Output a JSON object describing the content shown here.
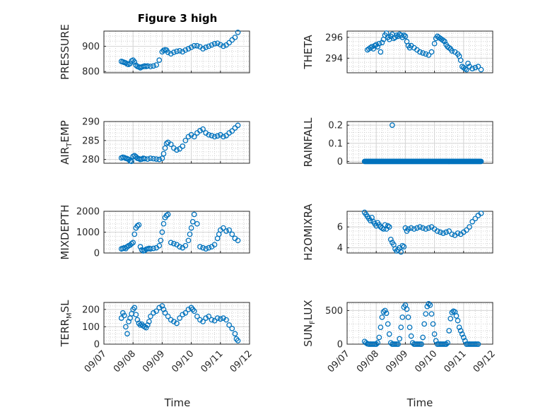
{
  "chart_data": [
    {
      "type": "scatter",
      "title": "Figure 3 high",
      "ylabel": "PRESSURE",
      "yticks": [
        800,
        900
      ],
      "ylim": [
        795,
        960
      ],
      "xlim": [
        0,
        5
      ],
      "xticks": [
        "09/07",
        "09/08",
        "09/09",
        "09/10",
        "09/11",
        "09/12"
      ],
      "grid": true,
      "x": [
        0.6,
        0.65,
        0.7,
        0.75,
        0.8,
        0.85,
        0.9,
        0.95,
        1.0,
        1.05,
        1.1,
        1.15,
        1.2,
        1.25,
        1.3,
        1.35,
        1.4,
        1.45,
        1.5,
        1.6,
        1.7,
        1.8,
        1.9,
        2.0,
        2.05,
        2.1,
        2.15,
        2.2,
        2.3,
        2.4,
        2.5,
        2.6,
        2.7,
        2.8,
        2.9,
        3.0,
        3.1,
        3.2,
        3.3,
        3.4,
        3.5,
        3.6,
        3.7,
        3.8,
        3.9,
        4.0,
        4.1,
        4.2,
        4.3,
        4.4,
        4.5,
        4.6
      ],
      "y": [
        840,
        838,
        836,
        834,
        830,
        828,
        832,
        842,
        845,
        838,
        825,
        820,
        818,
        815,
        818,
        820,
        822,
        820,
        822,
        820,
        822,
        826,
        845,
        878,
        884,
        886,
        885,
        876,
        870,
        876,
        880,
        882,
        878,
        885,
        890,
        896,
        902,
        902,
        898,
        890,
        896,
        900,
        905,
        910,
        912,
        906,
        900,
        905,
        914,
        925,
        935,
        955
      ]
    },
    {
      "type": "scatter",
      "ylabel": "THETA",
      "yticks": [
        294,
        296
      ],
      "ylim": [
        292.6,
        296.6
      ],
      "xlim": [
        0,
        5
      ],
      "xticks": [
        "09/07",
        "09/08",
        "09/09",
        "09/10",
        "09/11",
        "09/12"
      ],
      "grid": true,
      "x": [
        0.7,
        0.75,
        0.8,
        0.85,
        0.9,
        0.95,
        1.0,
        1.05,
        1.1,
        1.15,
        1.2,
        1.25,
        1.3,
        1.35,
        1.4,
        1.45,
        1.5,
        1.55,
        1.6,
        1.65,
        1.7,
        1.75,
        1.8,
        1.85,
        1.9,
        1.95,
        2.0,
        2.05,
        2.1,
        2.15,
        2.2,
        2.3,
        2.4,
        2.5,
        2.6,
        2.7,
        2.8,
        2.9,
        3.0,
        3.05,
        3.1,
        3.15,
        3.2,
        3.25,
        3.3,
        3.35,
        3.4,
        3.45,
        3.5,
        3.55,
        3.6,
        3.7,
        3.8,
        3.85,
        3.9,
        3.95,
        4.0,
        4.05,
        4.1,
        4.15,
        4.2,
        4.3,
        4.4,
        4.5,
        4.6
      ],
      "y": [
        294.8,
        294.9,
        295.0,
        295.1,
        294.9,
        295.2,
        295.3,
        295.1,
        295.4,
        294.6,
        295.5,
        295.8,
        296.2,
        296.4,
        296.0,
        295.8,
        296.1,
        296.3,
        295.9,
        296.0,
        296.2,
        296.1,
        296.3,
        296.2,
        296.0,
        296.2,
        296.1,
        295.6,
        295.2,
        295.0,
        295.2,
        295.0,
        294.8,
        294.6,
        294.5,
        294.4,
        294.3,
        294.6,
        295.4,
        295.9,
        296.1,
        296.0,
        295.9,
        295.8,
        295.7,
        295.6,
        295.3,
        295.1,
        295.0,
        294.9,
        294.7,
        294.6,
        294.4,
        294.2,
        293.8,
        293.2,
        293.1,
        293.0,
        292.9,
        293.5,
        293.2,
        293.0,
        293.1,
        293.2,
        292.9
      ]
    },
    {
      "type": "scatter",
      "ylabel": "AIR",
      "ylabel_sub": "T",
      "ylabel_rest": "EMP",
      "yticks": [
        280,
        285,
        290
      ],
      "ylim": [
        279,
        290
      ],
      "xlim": [
        0,
        5
      ],
      "xticks": [
        "09/07",
        "09/08",
        "09/09",
        "09/10",
        "09/11",
        "09/12"
      ],
      "grid": true,
      "x": [
        0.6,
        0.65,
        0.7,
        0.75,
        0.8,
        0.85,
        0.9,
        0.95,
        1.0,
        1.05,
        1.1,
        1.15,
        1.2,
        1.25,
        1.3,
        1.35,
        1.4,
        1.5,
        1.6,
        1.7,
        1.8,
        1.9,
        2.0,
        2.05,
        2.1,
        2.15,
        2.2,
        2.3,
        2.4,
        2.5,
        2.6,
        2.7,
        2.8,
        2.9,
        3.0,
        3.1,
        3.2,
        3.3,
        3.4,
        3.5,
        3.6,
        3.7,
        3.8,
        3.9,
        4.0,
        4.1,
        4.2,
        4.3,
        4.4,
        4.5,
        4.6
      ],
      "y": [
        280.4,
        280.6,
        280.5,
        280.3,
        280.2,
        280.0,
        279.6,
        279.5,
        280.8,
        281.0,
        280.7,
        280.3,
        280.2,
        280.0,
        280.1,
        280.3,
        280.2,
        280.1,
        280.3,
        280.2,
        280.1,
        280.0,
        280.3,
        281.5,
        283.0,
        284.2,
        284.5,
        284.0,
        283.0,
        282.5,
        282.8,
        283.5,
        285.0,
        286.0,
        286.5,
        286.0,
        287.0,
        287.6,
        288.0,
        287.0,
        286.5,
        286.3,
        286.0,
        286.2,
        286.5,
        286.0,
        286.3,
        287.0,
        287.5,
        288.3,
        289.0
      ]
    },
    {
      "type": "scatter",
      "ylabel": "RAINFALL",
      "yticks": [
        0,
        0.1,
        0.2
      ],
      "ylim": [
        -0.01,
        0.22
      ],
      "xlim": [
        0,
        5
      ],
      "xticks": [
        "09/07",
        "09/08",
        "09/09",
        "09/10",
        "09/11",
        "09/12"
      ],
      "grid": true,
      "x_range": [
        0.6,
        4.6
      ],
      "x": [
        1.55
      ],
      "y": [
        0.2
      ],
      "baseline_value": 0
    },
    {
      "type": "scatter",
      "ylabel": "MIXDEPTH",
      "yticks": [
        0,
        1000,
        2000
      ],
      "ylim": [
        0,
        2000
      ],
      "xlim": [
        0,
        5
      ],
      "xticks": [
        "09/07",
        "09/08",
        "09/09",
        "09/10",
        "09/11",
        "09/12"
      ],
      "grid": true,
      "x": [
        0.6,
        0.65,
        0.7,
        0.75,
        0.8,
        0.85,
        0.9,
        0.95,
        1.0,
        1.05,
        1.1,
        1.15,
        1.2,
        1.25,
        1.3,
        1.35,
        1.4,
        1.45,
        1.5,
        1.55,
        1.6,
        1.7,
        1.8,
        1.9,
        1.95,
        2.0,
        2.05,
        2.1,
        2.15,
        2.2,
        2.3,
        2.4,
        2.5,
        2.6,
        2.7,
        2.8,
        2.9,
        2.95,
        3.0,
        3.05,
        3.1,
        3.2,
        3.3,
        3.4,
        3.5,
        3.6,
        3.7,
        3.8,
        3.9,
        3.95,
        4.0,
        4.1,
        4.2,
        4.3,
        4.4,
        4.5,
        4.6
      ],
      "y": [
        200,
        220,
        250,
        210,
        300,
        350,
        380,
        450,
        500,
        900,
        1200,
        1300,
        1350,
        300,
        150,
        100,
        120,
        180,
        200,
        220,
        200,
        220,
        250,
        350,
        600,
        1000,
        1400,
        1700,
        1800,
        1850,
        500,
        450,
        400,
        300,
        250,
        350,
        600,
        900,
        1200,
        1500,
        1850,
        1400,
        300,
        250,
        200,
        250,
        300,
        400,
        700,
        900,
        1100,
        1200,
        1050,
        1100,
        900,
        700,
        600
      ]
    },
    {
      "type": "scatter",
      "ylabel": "H2OMIXRA",
      "yticks": [
        4,
        6
      ],
      "ylim": [
        3.5,
        7.5
      ],
      "xlim": [
        0,
        5
      ],
      "xticks": [
        "09/07",
        "09/08",
        "09/09",
        "09/10",
        "09/11",
        "09/12"
      ],
      "grid": true,
      "x": [
        0.6,
        0.65,
        0.7,
        0.75,
        0.8,
        0.85,
        0.9,
        0.95,
        1.0,
        1.05,
        1.1,
        1.15,
        1.2,
        1.25,
        1.3,
        1.35,
        1.4,
        1.45,
        1.5,
        1.55,
        1.6,
        1.65,
        1.7,
        1.75,
        1.8,
        1.85,
        1.9,
        1.95,
        2.0,
        2.05,
        2.1,
        2.2,
        2.3,
        2.4,
        2.5,
        2.6,
        2.7,
        2.8,
        2.9,
        3.0,
        3.1,
        3.2,
        3.3,
        3.4,
        3.5,
        3.6,
        3.7,
        3.8,
        3.9,
        4.0,
        4.1,
        4.2,
        4.3,
        4.4,
        4.5,
        4.6
      ],
      "y": [
        7.4,
        7.2,
        7.0,
        6.8,
        6.6,
        6.9,
        6.5,
        6.3,
        6.1,
        6.4,
        6.2,
        6.0,
        5.9,
        5.8,
        6.2,
        5.8,
        6.1,
        6.0,
        4.8,
        4.5,
        4.3,
        3.9,
        3.7,
        3.8,
        4.0,
        3.6,
        4.2,
        4.1,
        5.9,
        5.6,
        5.8,
        5.9,
        5.8,
        5.9,
        6.0,
        5.9,
        5.8,
        5.9,
        6.0,
        5.8,
        5.6,
        5.5,
        5.4,
        5.5,
        5.6,
        5.3,
        5.2,
        5.4,
        5.3,
        5.5,
        5.7,
        6.0,
        6.5,
        6.8,
        7.1,
        7.3
      ]
    },
    {
      "type": "scatter",
      "ylabel": "TERR",
      "ylabel_sub": "M",
      "ylabel_rest": "SL",
      "yticks": [
        0,
        100,
        200
      ],
      "ylim": [
        0,
        240
      ],
      "xlim": [
        0,
        5
      ],
      "xticks": [
        "09/07",
        "09/08",
        "09/09",
        "09/10",
        "09/11",
        "09/12"
      ],
      "grid": true,
      "x": [
        0.6,
        0.65,
        0.7,
        0.75,
        0.8,
        0.85,
        0.9,
        0.95,
        1.0,
        1.05,
        1.1,
        1.15,
        1.2,
        1.25,
        1.3,
        1.35,
        1.4,
        1.45,
        1.5,
        1.55,
        1.6,
        1.7,
        1.8,
        1.9,
        2.0,
        2.05,
        2.1,
        2.2,
        2.3,
        2.4,
        2.5,
        2.6,
        2.7,
        2.8,
        2.9,
        3.0,
        3.05,
        3.1,
        3.2,
        3.3,
        3.4,
        3.5,
        3.6,
        3.7,
        3.8,
        3.9,
        4.0,
        4.1,
        4.2,
        4.3,
        4.4,
        4.5,
        4.55,
        4.6
      ],
      "y": [
        150,
        180,
        165,
        100,
        60,
        130,
        150,
        175,
        200,
        210,
        170,
        140,
        120,
        110,
        115,
        105,
        100,
        95,
        110,
        130,
        160,
        180,
        190,
        210,
        220,
        200,
        180,
        160,
        140,
        130,
        120,
        150,
        170,
        180,
        200,
        210,
        200,
        190,
        160,
        140,
        130,
        150,
        160,
        140,
        135,
        150,
        145,
        150,
        140,
        110,
        90,
        60,
        30,
        20
      ]
    },
    {
      "type": "scatter",
      "ylabel": "SUN",
      "ylabel_sub": "F",
      "ylabel_rest": "LUX",
      "yticks": [
        0,
        500
      ],
      "ylim": [
        0,
        620
      ],
      "xlim": [
        0,
        5
      ],
      "xticks": [
        "09/07",
        "09/08",
        "09/09",
        "09/10",
        "09/11",
        "09/12"
      ],
      "grid": true,
      "x": [
        0.6,
        0.65,
        0.7,
        0.75,
        0.8,
        0.85,
        0.9,
        0.95,
        1.0,
        1.05,
        1.1,
        1.15,
        1.2,
        1.25,
        1.3,
        1.35,
        1.4,
        1.45,
        1.5,
        1.55,
        1.6,
        1.65,
        1.7,
        1.75,
        1.8,
        1.85,
        1.9,
        1.95,
        2.0,
        2.05,
        2.1,
        2.15,
        2.2,
        2.25,
        2.3,
        2.35,
        2.4,
        2.45,
        2.5,
        2.55,
        2.6,
        2.65,
        2.7,
        2.75,
        2.8,
        2.85,
        2.9,
        2.95,
        3.0,
        3.05,
        3.1,
        3.15,
        3.2,
        3.25,
        3.3,
        3.35,
        3.4,
        3.45,
        3.5,
        3.55,
        3.6,
        3.65,
        3.7,
        3.75,
        3.8,
        3.85,
        3.9,
        3.95,
        4.0,
        4.05,
        4.1,
        4.15,
        4.2,
        4.25,
        4.3,
        4.35,
        4.4,
        4.45,
        4.5
      ],
      "y": [
        40,
        20,
        5,
        0,
        0,
        0,
        0,
        0,
        0,
        20,
        100,
        250,
        400,
        480,
        500,
        460,
        300,
        150,
        20,
        0,
        0,
        0,
        0,
        0,
        80,
        250,
        400,
        550,
        580,
        520,
        400,
        250,
        120,
        20,
        0,
        0,
        0,
        0,
        0,
        0,
        100,
        300,
        450,
        560,
        600,
        580,
        450,
        300,
        150,
        50,
        0,
        0,
        0,
        0,
        0,
        0,
        0,
        20,
        200,
        380,
        470,
        490,
        480,
        420,
        350,
        250,
        200,
        150,
        100,
        50,
        0,
        0,
        0,
        0,
        0,
        0,
        0,
        0,
        0
      ]
    }
  ],
  "xlabel": "Time",
  "colors": {
    "marker": "#0072bd",
    "axis": "#262626",
    "grid": "#d6d6d6"
  }
}
